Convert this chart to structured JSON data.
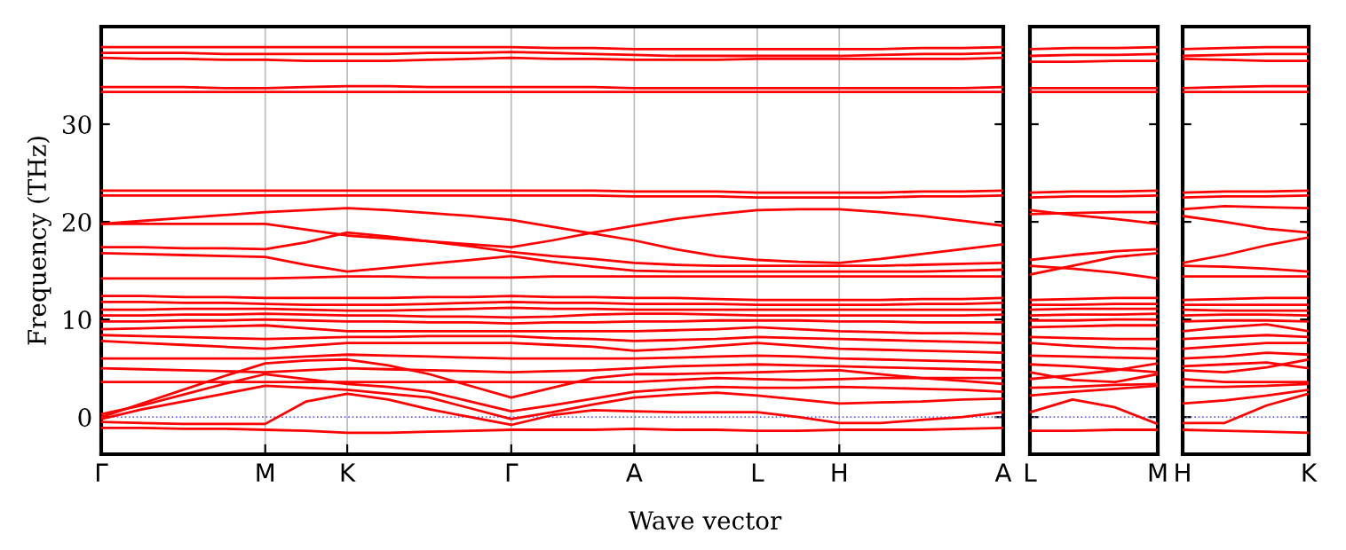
{
  "chart_data": [
    {
      "type": "line",
      "ylabel": "Frequency (THz)",
      "xlabel": "Wave vector",
      "grid": "x",
      "line_style": "solid",
      "marker": "none",
      "categories": [
        "Γ",
        null,
        null,
        null,
        "M",
        null,
        "K",
        null,
        null,
        null,
        "Γ",
        null,
        null,
        "A",
        null,
        null,
        "L",
        null,
        "H",
        null,
        null,
        null,
        "A"
      ],
      "ylim": [
        -3.8,
        40
      ],
      "yticks": [
        0,
        10,
        20,
        30
      ],
      "ref_lines": [
        {
          "axis": "y",
          "value": 0,
          "color": "#6666ff",
          "line_style": "dotted"
        }
      ],
      "series": [
        {
          "color": "#ff0000",
          "values": [
            37.9,
            37.9,
            37.9,
            37.9,
            37.9,
            37.9,
            37.9,
            37.9,
            37.9,
            37.9,
            37.9,
            37.8,
            37.8,
            37.7,
            37.7,
            37.7,
            37.7,
            37.7,
            37.7,
            37.7,
            37.8,
            37.8,
            37.9
          ]
        },
        {
          "color": "#ff0000",
          "values": [
            37.3,
            37.3,
            37.3,
            37.2,
            37.2,
            37.2,
            37.2,
            37.2,
            37.3,
            37.3,
            37.4,
            37.3,
            37.2,
            37.1,
            37.0,
            37.0,
            37.0,
            37.0,
            37.0,
            37.1,
            37.2,
            37.2,
            37.3
          ]
        },
        {
          "color": "#ff0000",
          "values": [
            36.8,
            36.7,
            36.7,
            36.6,
            36.6,
            36.5,
            36.5,
            36.5,
            36.6,
            36.7,
            36.8,
            36.7,
            36.7,
            36.6,
            36.6,
            36.6,
            36.7,
            36.7,
            36.7,
            36.7,
            36.7,
            36.7,
            36.8
          ]
        },
        {
          "color": "#ff0000",
          "values": [
            33.8,
            33.8,
            33.8,
            33.7,
            33.7,
            33.8,
            33.9,
            33.9,
            33.8,
            33.8,
            33.8,
            33.8,
            33.8,
            33.7,
            33.7,
            33.7,
            33.7,
            33.7,
            33.7,
            33.7,
            33.7,
            33.7,
            33.8
          ]
        },
        {
          "color": "#ff0000",
          "values": [
            33.3,
            33.3,
            33.3,
            33.3,
            33.3,
            33.3,
            33.3,
            33.3,
            33.3,
            33.3,
            33.3,
            33.3,
            33.3,
            33.3,
            33.3,
            33.3,
            33.3,
            33.3,
            33.3,
            33.3,
            33.3,
            33.3,
            33.3
          ]
        },
        {
          "color": "#ff0000",
          "values": [
            23.2,
            23.2,
            23.2,
            23.2,
            23.2,
            23.2,
            23.2,
            23.2,
            23.2,
            23.2,
            23.2,
            23.2,
            23.2,
            23.1,
            23.1,
            23.1,
            23.0,
            23.0,
            23.0,
            23.0,
            23.1,
            23.1,
            23.2
          ]
        },
        {
          "color": "#ff0000",
          "values": [
            22.7,
            22.7,
            22.7,
            22.7,
            22.7,
            22.7,
            22.7,
            22.7,
            22.7,
            22.7,
            22.7,
            22.7,
            22.7,
            22.6,
            22.6,
            22.6,
            22.5,
            22.5,
            22.5,
            22.5,
            22.6,
            22.6,
            22.7
          ]
        },
        {
          "color": "#ff0000",
          "values": [
            19.8,
            20.1,
            20.4,
            20.7,
            21.0,
            21.2,
            21.4,
            21.2,
            20.9,
            20.6,
            20.2,
            19.5,
            18.8,
            18.1,
            17.2,
            16.5,
            16.1,
            15.9,
            15.8,
            16.2,
            16.7,
            17.2,
            17.7
          ]
        },
        {
          "color": "#ff0000",
          "values": [
            19.8,
            19.8,
            19.8,
            19.8,
            19.8,
            19.2,
            18.6,
            18.3,
            18.0,
            17.7,
            17.4,
            18.1,
            18.9,
            19.6,
            20.3,
            20.8,
            21.2,
            21.3,
            21.3,
            21.0,
            20.6,
            20.1,
            19.6
          ]
        },
        {
          "color": "#ff0000",
          "values": [
            17.4,
            17.4,
            17.3,
            17.3,
            17.2,
            17.9,
            18.9,
            18.5,
            18.0,
            17.5,
            16.9,
            16.5,
            16.2,
            15.8,
            15.6,
            15.5,
            15.5,
            15.5,
            15.5,
            15.5,
            15.6,
            15.7,
            15.8
          ]
        },
        {
          "color": "#ff0000",
          "values": [
            16.8,
            16.7,
            16.6,
            16.5,
            16.4,
            15.6,
            14.9,
            15.3,
            15.7,
            16.1,
            16.5,
            15.9,
            15.4,
            15.0,
            14.9,
            14.9,
            14.9,
            14.9,
            14.9,
            14.9,
            14.9,
            15.0,
            15.1
          ]
        },
        {
          "color": "#ff0000",
          "values": [
            14.2,
            14.2,
            14.2,
            14.2,
            14.2,
            14.3,
            14.4,
            14.4,
            14.3,
            14.3,
            14.3,
            14.4,
            14.4,
            14.4,
            14.4,
            14.4,
            14.4,
            14.4,
            14.4,
            14.4,
            14.4,
            14.4,
            14.4
          ]
        },
        {
          "color": "#ff0000",
          "values": [
            12.4,
            12.4,
            12.3,
            12.3,
            12.2,
            12.2,
            12.2,
            12.2,
            12.3,
            12.3,
            12.4,
            12.3,
            12.3,
            12.2,
            12.2,
            12.1,
            12.0,
            12.0,
            12.0,
            12.0,
            12.1,
            12.1,
            12.2
          ]
        },
        {
          "color": "#ff0000",
          "values": [
            11.8,
            11.8,
            11.7,
            11.7,
            11.6,
            11.5,
            11.5,
            11.5,
            11.6,
            11.7,
            11.8,
            11.7,
            11.7,
            11.6,
            11.6,
            11.6,
            11.5,
            11.5,
            11.5,
            11.5,
            11.6,
            11.6,
            11.7
          ]
        },
        {
          "color": "#ff0000",
          "values": [
            11.0,
            11.0,
            11.1,
            11.1,
            11.1,
            11.0,
            10.9,
            10.9,
            11.0,
            11.1,
            11.2,
            11.1,
            11.1,
            11.0,
            11.0,
            11.0,
            11.0,
            11.0,
            11.0,
            11.0,
            11.0,
            11.0,
            11.0
          ]
        },
        {
          "color": "#ff0000",
          "values": [
            10.4,
            10.4,
            10.5,
            10.5,
            10.6,
            10.5,
            10.4,
            10.4,
            10.3,
            10.3,
            10.2,
            10.3,
            10.5,
            10.6,
            10.6,
            10.5,
            10.4,
            10.4,
            10.4,
            10.4,
            10.4,
            10.4,
            10.5
          ]
        },
        {
          "color": "#ff0000",
          "values": [
            9.8,
            9.8,
            9.9,
            9.9,
            10.0,
            9.9,
            9.8,
            9.8,
            9.7,
            9.7,
            9.6,
            9.7,
            9.7,
            9.8,
            9.8,
            9.9,
            9.9,
            9.9,
            9.8,
            9.8,
            9.7,
            9.7,
            9.7
          ]
        },
        {
          "color": "#ff0000",
          "values": [
            9.0,
            9.1,
            9.2,
            9.3,
            9.4,
            9.1,
            8.8,
            8.8,
            8.8,
            8.8,
            8.8,
            8.8,
            8.8,
            8.8,
            8.9,
            9.0,
            9.2,
            9.0,
            8.8,
            8.7,
            8.6,
            8.6,
            8.5
          ]
        },
        {
          "color": "#ff0000",
          "values": [
            8.4,
            8.3,
            8.2,
            8.1,
            8.0,
            8.1,
            8.2,
            8.2,
            8.3,
            8.3,
            8.3,
            8.1,
            8.0,
            7.8,
            7.9,
            8.0,
            8.2,
            8.1,
            8.0,
            7.9,
            7.8,
            7.7,
            7.6
          ]
        },
        {
          "color": "#ff0000",
          "values": [
            7.8,
            7.6,
            7.4,
            7.2,
            7.0,
            7.3,
            7.6,
            7.6,
            7.6,
            7.6,
            7.6,
            7.4,
            7.2,
            6.8,
            7.0,
            7.3,
            7.6,
            7.3,
            7.0,
            6.9,
            6.8,
            6.7,
            6.6
          ]
        },
        {
          "color": "#ff0000",
          "values": [
            6.0,
            6.0,
            6.0,
            6.0,
            6.0,
            6.2,
            6.4,
            6.3,
            6.2,
            6.1,
            6.0,
            6.0,
            6.0,
            6.0,
            6.1,
            6.2,
            6.3,
            6.2,
            6.0,
            5.9,
            5.8,
            5.7,
            5.6
          ]
        },
        {
          "color": "#ff0000",
          "values": [
            5.0,
            4.9,
            4.8,
            4.7,
            4.6,
            4.8,
            5.0,
            4.9,
            4.8,
            4.7,
            4.6,
            4.7,
            4.8,
            5.0,
            5.2,
            5.3,
            5.4,
            5.3,
            5.2,
            5.1,
            5.0,
            4.9,
            4.8
          ]
        },
        {
          "color": "#ff0000",
          "values": [
            3.6,
            3.6,
            3.6,
            3.6,
            3.6,
            3.6,
            3.6,
            3.6,
            3.6,
            3.6,
            3.6,
            3.6,
            3.6,
            3.6,
            3.8,
            4.0,
            3.9,
            3.8,
            3.9,
            4.0,
            4.0,
            4.0,
            4.0
          ]
        },
        {
          "color": "#ff0000",
          "values": [
            0,
            1.4,
            2.8,
            4.2,
            5.5,
            5.8,
            5.9,
            5.3,
            4.4,
            3.2,
            2.0,
            3.0,
            4.0,
            4.4,
            4.4,
            4.5,
            4.6,
            4.7,
            4.8,
            4.4,
            4.0,
            3.7,
            3.4
          ]
        },
        {
          "color": "#ff0000",
          "values": [
            0.3,
            1.2,
            2.3,
            3.4,
            4.4,
            3.9,
            3.4,
            3.1,
            2.6,
            1.6,
            0.6,
            1.2,
            1.9,
            2.6,
            2.9,
            3.1,
            3.0,
            3.0,
            3.1,
            3.0,
            2.9,
            2.8,
            2.6
          ]
        },
        {
          "color": "#ff0000",
          "values": [
            -0.2,
            0.8,
            1.6,
            2.4,
            3.2,
            3.0,
            2.8,
            2.4,
            2.0,
            0.9,
            -0.2,
            0.5,
            1.3,
            2.0,
            2.3,
            2.5,
            2.2,
            1.8,
            1.4,
            1.5,
            1.6,
            1.8,
            1.9
          ]
        },
        {
          "color": "#ff0000",
          "values": [
            -0.5,
            -0.6,
            -0.7,
            -0.7,
            -0.7,
            1.6,
            2.4,
            1.8,
            0.8,
            0.0,
            -0.8,
            0.2,
            0.7,
            0.6,
            0.5,
            0.5,
            0.5,
            0.0,
            -0.6,
            -0.6,
            -0.3,
            0.0,
            0.5
          ]
        },
        {
          "color": "#ff0000",
          "values": [
            -1.1,
            -1.1,
            -1.2,
            -1.2,
            -1.3,
            -1.4,
            -1.6,
            -1.6,
            -1.5,
            -1.4,
            -1.3,
            -1.3,
            -1.3,
            -1.2,
            -1.3,
            -1.3,
            -1.4,
            -1.4,
            -1.3,
            -1.3,
            -1.3,
            -1.2,
            -1.1
          ]
        }
      ]
    },
    {
      "type": "line",
      "line_style": "solid",
      "marker": "none",
      "tick_labels": "x",
      "categories": [
        "L",
        null,
        null,
        "M"
      ],
      "ylim": [
        -3.8,
        40
      ],
      "yticks": [
        0,
        10,
        20,
        30
      ],
      "ref_lines": [
        {
          "axis": "y",
          "value": 0,
          "color": "#6666ff",
          "line_style": "dotted"
        }
      ],
      "series": [
        {
          "color": "#ff0000",
          "values": [
            37.7,
            37.8,
            37.8,
            37.9
          ]
        },
        {
          "color": "#ff0000",
          "values": [
            37.0,
            37.1,
            37.1,
            37.2
          ]
        },
        {
          "color": "#ff0000",
          "values": [
            36.4,
            36.4,
            36.5,
            36.5
          ]
        },
        {
          "color": "#ff0000",
          "values": [
            33.7,
            33.7,
            33.7,
            33.7
          ]
        },
        {
          "color": "#ff0000",
          "values": [
            33.3,
            33.3,
            33.3,
            33.3
          ]
        },
        {
          "color": "#ff0000",
          "values": [
            23.0,
            23.1,
            23.1,
            23.2
          ]
        },
        {
          "color": "#ff0000",
          "values": [
            22.5,
            22.6,
            22.6,
            22.7
          ]
        },
        {
          "color": "#ff0000",
          "values": [
            21.2,
            20.7,
            20.3,
            19.8
          ]
        },
        {
          "color": "#ff0000",
          "values": [
            20.8,
            20.9,
            21.0,
            21.0
          ]
        },
        {
          "color": "#ff0000",
          "values": [
            16.1,
            16.6,
            17.0,
            17.2
          ]
        },
        {
          "color": "#ff0000",
          "values": [
            15.5,
            15.2,
            14.8,
            14.2
          ]
        },
        {
          "color": "#ff0000",
          "values": [
            14.6,
            15.5,
            16.4,
            16.8
          ]
        },
        {
          "color": "#ff0000",
          "values": [
            12.0,
            12.1,
            12.2,
            12.2
          ]
        },
        {
          "color": "#ff0000",
          "values": [
            11.5,
            11.5,
            11.6,
            11.6
          ]
        },
        {
          "color": "#ff0000",
          "values": [
            11.0,
            11.1,
            11.1,
            11.1
          ]
        },
        {
          "color": "#ff0000",
          "values": [
            10.4,
            10.5,
            10.5,
            10.6
          ]
        },
        {
          "color": "#ff0000",
          "values": [
            9.9,
            9.9,
            10.0,
            10.0
          ]
        },
        {
          "color": "#ff0000",
          "values": [
            9.2,
            9.3,
            9.4,
            9.4
          ]
        },
        {
          "color": "#ff0000",
          "values": [
            8.2,
            8.1,
            8.0,
            8.0
          ]
        },
        {
          "color": "#ff0000",
          "values": [
            7.6,
            7.3,
            7.1,
            7.0
          ]
        },
        {
          "color": "#ff0000",
          "values": [
            6.3,
            6.2,
            6.1,
            6.0
          ]
        },
        {
          "color": "#ff0000",
          "values": [
            5.4,
            5.2,
            4.9,
            4.6
          ]
        },
        {
          "color": "#ff0000",
          "values": [
            3.9,
            4.3,
            4.8,
            5.5
          ]
        },
        {
          "color": "#ff0000",
          "values": [
            4.6,
            3.8,
            3.6,
            4.4
          ]
        },
        {
          "color": "#ff0000",
          "values": [
            3.0,
            3.1,
            3.3,
            3.4
          ]
        },
        {
          "color": "#ff0000",
          "values": [
            2.2,
            2.6,
            2.9,
            3.2
          ]
        },
        {
          "color": "#ff0000",
          "values": [
            0.5,
            1.8,
            1.0,
            -0.7
          ]
        },
        {
          "color": "#ff0000",
          "values": [
            -1.4,
            -1.4,
            -1.3,
            -1.3
          ]
        }
      ]
    },
    {
      "type": "line",
      "line_style": "solid",
      "marker": "none",
      "tick_labels": "x",
      "categories": [
        "H",
        null,
        null,
        "K"
      ],
      "ylim": [
        -3.8,
        40
      ],
      "yticks": [
        0,
        10,
        20,
        30
      ],
      "ref_lines": [
        {
          "axis": "y",
          "value": 0,
          "color": "#6666ff",
          "line_style": "dotted"
        }
      ],
      "series": [
        {
          "color": "#ff0000",
          "values": [
            37.7,
            37.8,
            37.9,
            37.9
          ]
        },
        {
          "color": "#ff0000",
          "values": [
            37.0,
            37.1,
            37.2,
            37.2
          ]
        },
        {
          "color": "#ff0000",
          "values": [
            36.7,
            36.6,
            36.5,
            36.5
          ]
        },
        {
          "color": "#ff0000",
          "values": [
            33.7,
            33.8,
            33.9,
            33.9
          ]
        },
        {
          "color": "#ff0000",
          "values": [
            33.3,
            33.3,
            33.3,
            33.3
          ]
        },
        {
          "color": "#ff0000",
          "values": [
            23.0,
            23.1,
            23.1,
            23.2
          ]
        },
        {
          "color": "#ff0000",
          "values": [
            22.5,
            22.6,
            22.6,
            22.7
          ]
        },
        {
          "color": "#ff0000",
          "values": [
            21.3,
            21.6,
            21.5,
            21.4
          ]
        },
        {
          "color": "#ff0000",
          "values": [
            20.6,
            20.0,
            19.3,
            18.9
          ]
        },
        {
          "color": "#ff0000",
          "values": [
            15.8,
            16.6,
            17.6,
            18.4
          ]
        },
        {
          "color": "#ff0000",
          "values": [
            15.5,
            15.4,
            15.2,
            14.9
          ]
        },
        {
          "color": "#ff0000",
          "values": [
            14.4,
            14.4,
            14.4,
            14.4
          ]
        },
        {
          "color": "#ff0000",
          "values": [
            12.0,
            12.1,
            12.2,
            12.2
          ]
        },
        {
          "color": "#ff0000",
          "values": [
            11.5,
            11.5,
            11.5,
            11.5
          ]
        },
        {
          "color": "#ff0000",
          "values": [
            11.0,
            10.9,
            10.9,
            10.9
          ]
        },
        {
          "color": "#ff0000",
          "values": [
            10.4,
            10.5,
            10.5,
            10.4
          ]
        },
        {
          "color": "#ff0000",
          "values": [
            9.8,
            9.9,
            9.9,
            9.8
          ]
        },
        {
          "color": "#ff0000",
          "values": [
            8.8,
            9.2,
            9.5,
            8.8
          ]
        },
        {
          "color": "#ff0000",
          "values": [
            8.0,
            8.2,
            8.4,
            8.2
          ]
        },
        {
          "color": "#ff0000",
          "values": [
            7.0,
            7.3,
            7.6,
            7.6
          ]
        },
        {
          "color": "#ff0000",
          "values": [
            6.0,
            6.2,
            6.6,
            6.4
          ]
        },
        {
          "color": "#ff0000",
          "values": [
            5.2,
            5.4,
            5.6,
            5.0
          ]
        },
        {
          "color": "#ff0000",
          "values": [
            3.9,
            3.6,
            3.6,
            3.6
          ]
        },
        {
          "color": "#ff0000",
          "values": [
            4.8,
            4.6,
            5.1,
            5.9
          ]
        },
        {
          "color": "#ff0000",
          "values": [
            3.1,
            3.1,
            3.2,
            3.4
          ]
        },
        {
          "color": "#ff0000",
          "values": [
            1.4,
            1.7,
            2.2,
            2.8
          ]
        },
        {
          "color": "#ff0000",
          "values": [
            -0.6,
            -0.6,
            1.2,
            2.4
          ]
        },
        {
          "color": "#ff0000",
          "values": [
            -1.3,
            -1.4,
            -1.5,
            -1.6
          ]
        }
      ]
    }
  ]
}
